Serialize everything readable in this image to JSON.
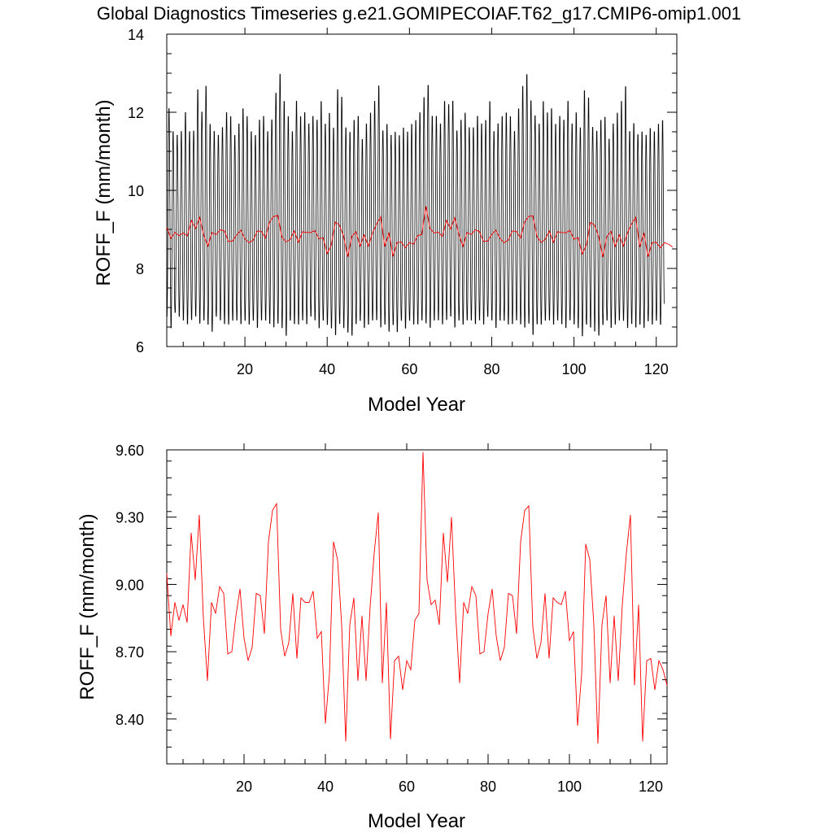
{
  "title": "Global Diagnostics Timeseries g.e21.GOMIPECOIAF.T62_g17.CMIP6-omip1.001",
  "colors": {
    "monthly": "#000000",
    "annual": "#ff0000",
    "axes": "#000000"
  },
  "chart_data": [
    {
      "type": "line",
      "xlabel": "Model Year",
      "ylabel": "ROFF_F (mm/month)",
      "xlim": [
        1,
        125
      ],
      "ylim": [
        6,
        14
      ],
      "xticks": [
        20,
        40,
        60,
        80,
        100,
        120
      ],
      "xtick_labels": [
        "20",
        "40",
        "60",
        "80",
        "100",
        "120"
      ],
      "yticks": [
        6,
        8,
        10,
        12,
        14
      ],
      "ytick_labels": [
        "6",
        "8",
        "10",
        "12",
        "14"
      ],
      "grid": false,
      "legend": false,
      "series": [
        {
          "role": "monthly",
          "x": [],
          "values": [],
          "color": "#000000",
          "note_cycle_max": [
            12.2,
            11.6,
            11.5,
            11.6,
            12.1,
            11.6,
            11.6,
            12.7,
            12.1,
            12.8,
            11.8,
            11.6,
            11.5,
            11.7,
            12.1,
            12.0,
            11.5,
            11.8,
            12.2,
            12.0,
            11.6,
            11.5,
            11.9,
            12.0,
            11.6,
            11.9,
            12.6,
            13.1,
            12.4,
            12.0,
            11.6,
            12.4,
            12.0,
            12.1,
            11.8,
            12.0,
            11.9,
            12.4,
            11.8,
            12.1,
            11.7,
            12.7,
            12.5,
            11.7,
            11.6,
            11.9,
            12.0,
            11.4,
            11.8,
            12.1,
            12.4,
            12.8,
            11.6,
            11.8,
            11.5,
            11.6,
            11.5,
            11.7,
            11.6,
            11.8,
            11.9,
            12.1,
            12.5,
            12.8,
            12.0,
            12.0,
            11.8,
            12.4,
            12.3,
            12.4,
            11.6,
            11.9,
            12.1,
            11.7,
            11.7,
            12.0,
            11.8,
            11.9,
            12.4,
            11.6,
            11.8,
            12.0,
            12.1,
            12.0,
            11.6,
            12.2,
            12.8,
            13.1,
            12.4,
            12.0,
            11.8,
            12.4,
            12.1,
            12.2,
            11.8,
            12.0,
            11.9,
            12.4,
            11.8,
            12.1,
            11.7,
            12.7,
            12.5,
            11.7,
            11.6,
            11.9,
            12.0,
            11.4,
            11.8,
            12.1,
            12.4,
            12.8,
            11.6,
            11.8,
            11.5,
            11.6,
            11.5,
            11.7,
            11.6,
            11.8,
            11.9
          ],
          "note_cycle_min": [
            6.7,
            6.4,
            6.8,
            6.7,
            6.6,
            6.5,
            6.6,
            6.7,
            6.5,
            6.6,
            6.5,
            6.3,
            6.7,
            6.6,
            6.5,
            6.5,
            6.6,
            6.6,
            6.5,
            6.6,
            6.5,
            6.6,
            6.4,
            6.6,
            6.6,
            6.5,
            6.4,
            6.5,
            6.4,
            6.2,
            6.6,
            6.5,
            6.5,
            6.6,
            6.5,
            6.7,
            6.6,
            6.4,
            6.6,
            6.5,
            6.4,
            6.2,
            6.5,
            6.4,
            6.3,
            6.2,
            6.5,
            6.6,
            6.4,
            6.5,
            6.6,
            6.6,
            6.4,
            6.5,
            6.3,
            6.5,
            6.3,
            6.6,
            6.4,
            6.6,
            6.5,
            6.5,
            6.6,
            6.5,
            6.4,
            6.6,
            6.6,
            6.5,
            6.6,
            6.7,
            6.4,
            6.6,
            6.5,
            6.6,
            6.6,
            6.5,
            6.6,
            6.5,
            6.7,
            6.6,
            6.4,
            6.6,
            6.6,
            6.5,
            6.5,
            6.6,
            6.5,
            6.4,
            6.5,
            6.2,
            6.5,
            6.5,
            6.6,
            6.6,
            6.5,
            6.6,
            6.5,
            6.4,
            6.6,
            6.5,
            6.4,
            6.2,
            6.5,
            6.4,
            6.3,
            6.2,
            6.5,
            6.6,
            6.4,
            6.5,
            6.6,
            6.6,
            6.4,
            6.5,
            6.4,
            6.5,
            6.4,
            6.6,
            6.5,
            6.6,
            6.5,
            6.5,
            6.6,
            6.5,
            6.6
          ]
        },
        {
          "role": "annual",
          "ref": "annual_values",
          "color": "#ff0000"
        }
      ]
    },
    {
      "type": "line",
      "xlabel": "Model Year",
      "ylabel": "ROFF_F (mm/month)",
      "xlim": [
        1,
        124
      ],
      "ylim": [
        8.2,
        9.6
      ],
      "xticks": [
        20,
        40,
        60,
        80,
        100,
        120
      ],
      "xtick_labels": [
        "20",
        "40",
        "60",
        "80",
        "100",
        "120"
      ],
      "yticks": [
        8.4,
        8.7,
        9.0,
        9.3,
        9.6
      ],
      "ytick_labels": [
        "8.40",
        "8.70",
        "9.00",
        "9.30",
        "9.60"
      ],
      "grid": false,
      "legend": false,
      "series": [
        {
          "role": "annual",
          "ref": "annual_values",
          "color": "#ff0000"
        }
      ]
    }
  ],
  "annual_values": [
    9.05,
    8.77,
    8.92,
    8.84,
    8.91,
    8.83,
    9.23,
    9.02,
    9.31,
    8.85,
    8.57,
    8.92,
    8.87,
    8.99,
    8.96,
    8.69,
    8.7,
    8.86,
    8.98,
    8.76,
    8.66,
    8.72,
    8.96,
    8.95,
    8.78,
    9.19,
    9.33,
    9.36,
    8.8,
    8.68,
    8.74,
    8.96,
    8.67,
    8.94,
    8.92,
    8.92,
    8.97,
    8.76,
    8.79,
    8.38,
    8.6,
    9.19,
    9.11,
    8.82,
    8.3,
    8.82,
    8.94,
    8.57,
    8.86,
    8.57,
    8.9,
    9.14,
    9.32,
    8.56,
    8.92,
    8.31,
    8.66,
    8.68,
    8.53,
    8.66,
    8.62,
    8.84,
    8.87,
    9.59,
    9.02,
    8.91,
    8.93,
    8.82,
    9.23,
    9.01,
    9.3,
    8.88,
    8.56,
    8.92,
    8.87,
    8.99,
    8.95,
    8.69,
    8.7,
    8.87,
    8.98,
    8.77,
    8.66,
    8.72,
    8.96,
    8.95,
    8.78,
    9.19,
    9.33,
    9.35,
    8.81,
    8.67,
    8.74,
    8.96,
    8.67,
    8.94,
    8.92,
    8.91,
    8.97,
    8.75,
    8.79,
    8.37,
    8.6,
    9.18,
    9.11,
    8.82,
    8.29,
    8.82,
    8.95,
    8.56,
    8.86,
    8.57,
    8.91,
    9.14,
    9.31,
    8.55,
    8.91,
    8.3,
    8.66,
    8.67,
    8.53,
    8.66,
    8.62,
    8.55
  ]
}
